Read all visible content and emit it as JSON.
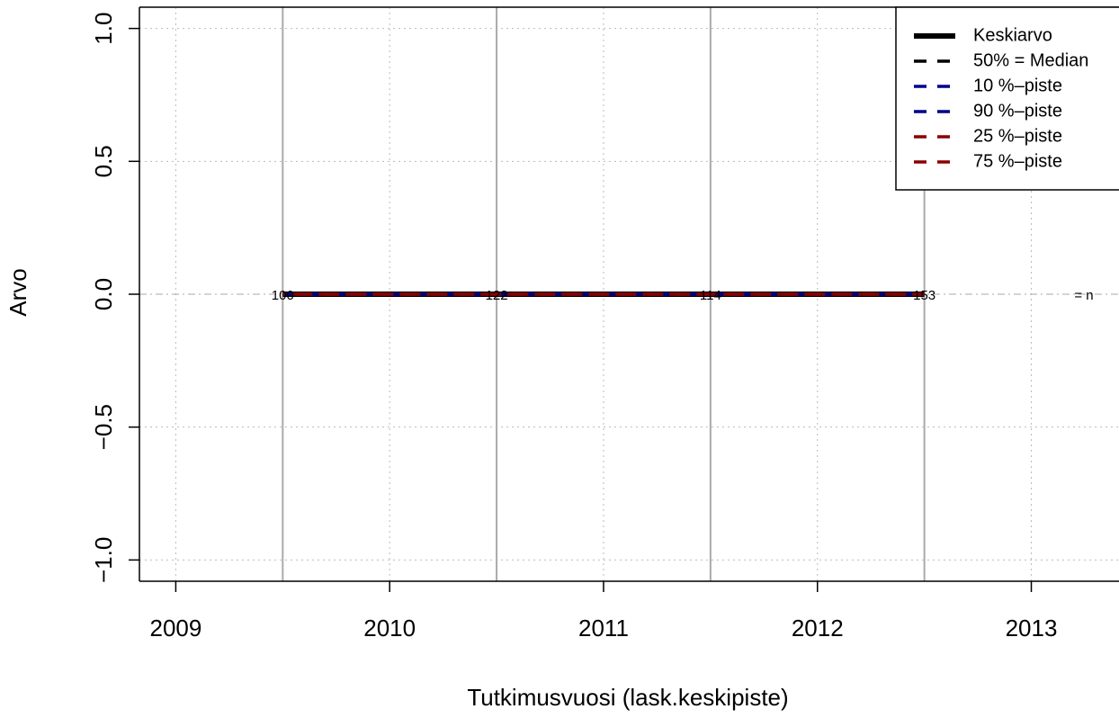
{
  "chart_data": {
    "type": "line",
    "xlabel": "Tutkimusvuosi (lask.keskipiste)",
    "ylabel": "Arvo",
    "x": [
      2009.5,
      2010.5,
      2011.5,
      2012.5
    ],
    "series": [
      {
        "name": "Keskiarvo",
        "color": "#000000",
        "values": [
          0,
          0,
          0,
          0
        ]
      },
      {
        "name": "50% = Median",
        "color": "#000000",
        "values": [
          0,
          0,
          0,
          0
        ]
      },
      {
        "name": "10 %–piste",
        "color": "#00008b",
        "values": [
          0,
          0,
          0,
          0
        ]
      },
      {
        "name": "90 %–piste",
        "color": "#00008b",
        "values": [
          0,
          0,
          0,
          0
        ]
      },
      {
        "name": "25 %–piste",
        "color": "#8b0000",
        "values": [
          0,
          0,
          0,
          0
        ]
      },
      {
        "name": "75 %–piste",
        "color": "#8b0000",
        "values": [
          0,
          0,
          0,
          0
        ]
      }
    ],
    "n": [
      100,
      122,
      114,
      153
    ],
    "n_label": "= n",
    "xlim": [
      2008.83,
      2013.41
    ],
    "ylim": [
      -1.08,
      1.08
    ],
    "xticks": [
      2009,
      2010,
      2011,
      2012,
      2013
    ],
    "yticks": [
      {
        "value": -1,
        "label": "−1.0"
      },
      {
        "value": -0.5,
        "label": "−0.5"
      },
      {
        "value": 0,
        "label": "0.0"
      },
      {
        "value": 0.5,
        "label": "0.5"
      },
      {
        "value": 1,
        "label": "1.0"
      }
    ],
    "grid": true,
    "legend": "top-right"
  }
}
